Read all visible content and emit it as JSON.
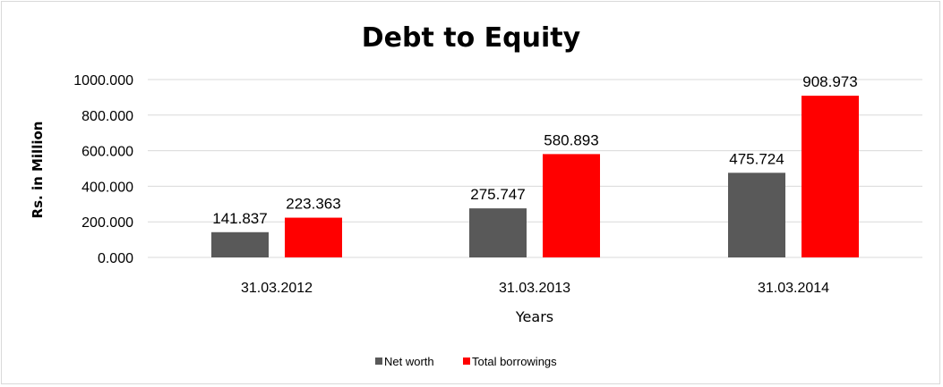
{
  "chart_data": {
    "type": "bar",
    "title": "Debt to Equity",
    "xlabel": "Years",
    "ylabel": "Rs. in Million",
    "categories": [
      "31.03.2012",
      "31.03.2013",
      "31.03.2014"
    ],
    "series": [
      {
        "name": "Net worth",
        "values": [
          141.837,
          275.747,
          475.724
        ],
        "color": "#595959"
      },
      {
        "name": "Total borrowings",
        "values": [
          223.363,
          580.893,
          908.973
        ],
        "color": "#ff0000"
      }
    ],
    "ylim": [
      0,
      1000
    ],
    "yticks": [
      "0.000",
      "200.000",
      "400.000",
      "600.000",
      "800.000",
      "1000.000"
    ],
    "data_labels": [
      [
        "141.837",
        "275.747",
        "475.724"
      ],
      [
        "223.363",
        "580.893",
        "908.973"
      ]
    ],
    "grid": true,
    "gridline_color": "#d9d9d9",
    "legend_position": "bottom"
  }
}
